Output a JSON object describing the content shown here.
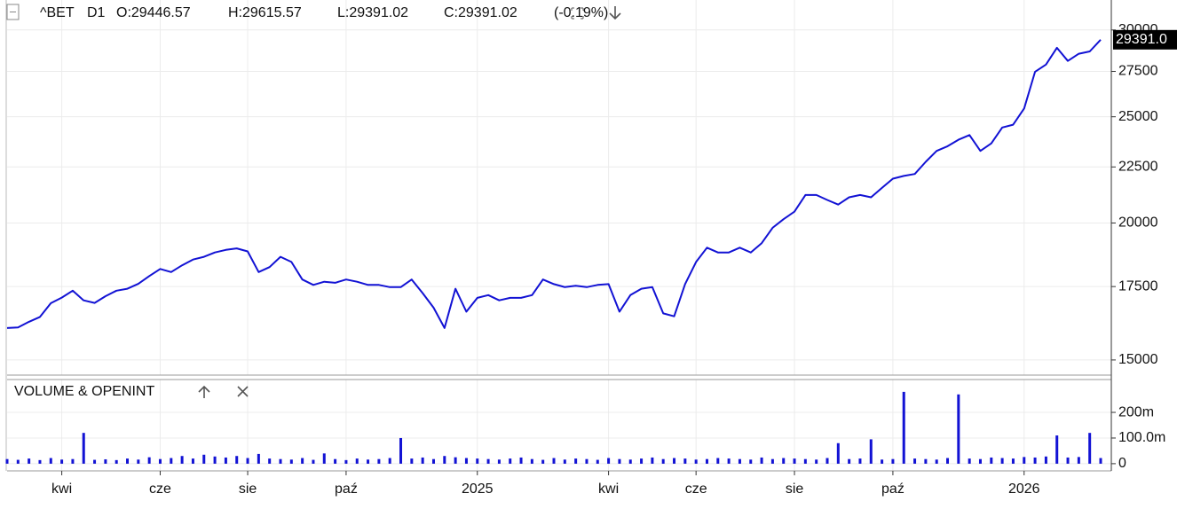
{
  "chart_data": [
    {
      "type": "line",
      "symbol": "^BET",
      "timeframe": "D1",
      "open": "O:29446.57",
      "high": "H:29615.57",
      "low": "L:29391.02",
      "close": "C:29391.02",
      "change": "(-0.19%)",
      "last_label": "29391.0",
      "log_scale": true,
      "grid": true,
      "categories": [
        null,
        null,
        null,
        null,
        null,
        "kwi",
        null,
        null,
        null,
        null,
        null,
        null,
        null,
        null,
        "cze",
        null,
        null,
        null,
        null,
        null,
        null,
        null,
        "sie",
        null,
        null,
        null,
        null,
        null,
        null,
        null,
        null,
        "paź",
        null,
        null,
        null,
        null,
        null,
        null,
        null,
        null,
        null,
        null,
        null,
        "2025",
        null,
        null,
        null,
        null,
        null,
        null,
        null,
        null,
        null,
        null,
        null,
        "kwi",
        null,
        null,
        null,
        null,
        null,
        null,
        null,
        "cze",
        null,
        null,
        null,
        null,
        null,
        null,
        null,
        null,
        "sie",
        null,
        null,
        null,
        null,
        null,
        null,
        null,
        null,
        "paź",
        null,
        null,
        null,
        null,
        null,
        null,
        null,
        null,
        null,
        null,
        null,
        "2026",
        null,
        null,
        null,
        null,
        null,
        null,
        null
      ],
      "series": [
        {
          "color": "#1212d4",
          "values": [
            16040,
            16060,
            16250,
            16420,
            16900,
            17100,
            17350,
            17000,
            16910,
            17150,
            17350,
            17420,
            17600,
            17890,
            18160,
            18040,
            18300,
            18520,
            18630,
            18800,
            18900,
            18960,
            18840,
            18040,
            18230,
            18630,
            18430,
            17760,
            17560,
            17680,
            17640,
            17760,
            17680,
            17560,
            17560,
            17480,
            17480,
            17760,
            17260,
            16740,
            16040,
            17420,
            16600,
            17090,
            17190,
            17000,
            17090,
            17090,
            17190,
            17760,
            17590,
            17480,
            17530,
            17480,
            17560,
            17590,
            16600,
            17190,
            17420,
            17480,
            16540,
            16440,
            17590,
            18430,
            18990,
            18800,
            18800,
            18990,
            18800,
            19170,
            19800,
            20160,
            20480,
            21210,
            21210,
            20990,
            20790,
            21110,
            21210,
            21110,
            21530,
            21950,
            22080,
            22170,
            22740,
            23270,
            23500,
            23820,
            24060,
            23270,
            23640,
            24440,
            24590,
            25440,
            27480,
            27900,
            28900,
            28110,
            28540,
            28680,
            29391
          ]
        }
      ],
      "ylim": [
        14530,
        31950
      ],
      "yticks": [
        15000,
        17500,
        20000,
        22500,
        25000,
        27500,
        30000
      ]
    },
    {
      "type": "bar",
      "title": "VOLUME & OPENINT",
      "color": "#1212d4",
      "values": [
        18,
        15,
        20,
        14,
        22,
        16,
        18,
        120,
        15,
        17,
        14,
        20,
        16,
        25,
        18,
        22,
        30,
        20,
        35,
        28,
        24,
        30,
        22,
        38,
        20,
        18,
        16,
        22,
        15,
        40,
        18,
        14,
        20,
        16,
        18,
        22,
        100,
        20,
        24,
        18,
        30,
        25,
        22,
        20,
        18,
        16,
        20,
        24,
        18,
        15,
        22,
        16,
        20,
        18,
        15,
        22,
        18,
        16,
        20,
        24,
        18,
        22,
        20,
        16,
        18,
        22,
        20,
        18,
        16,
        24,
        18,
        22,
        20,
        18,
        16,
        22,
        80,
        18,
        20,
        95,
        16,
        18,
        280,
        20,
        18,
        16,
        22,
        270,
        20,
        18,
        24,
        22,
        20,
        26,
        24,
        28,
        110,
        24,
        26,
        120,
        22
      ],
      "ylim": [
        -28,
        328
      ],
      "yticks": [
        0,
        {
          "value": 100,
          "label": "100.0m"
        },
        {
          "value": 200,
          "label": "200m"
        }
      ]
    }
  ]
}
